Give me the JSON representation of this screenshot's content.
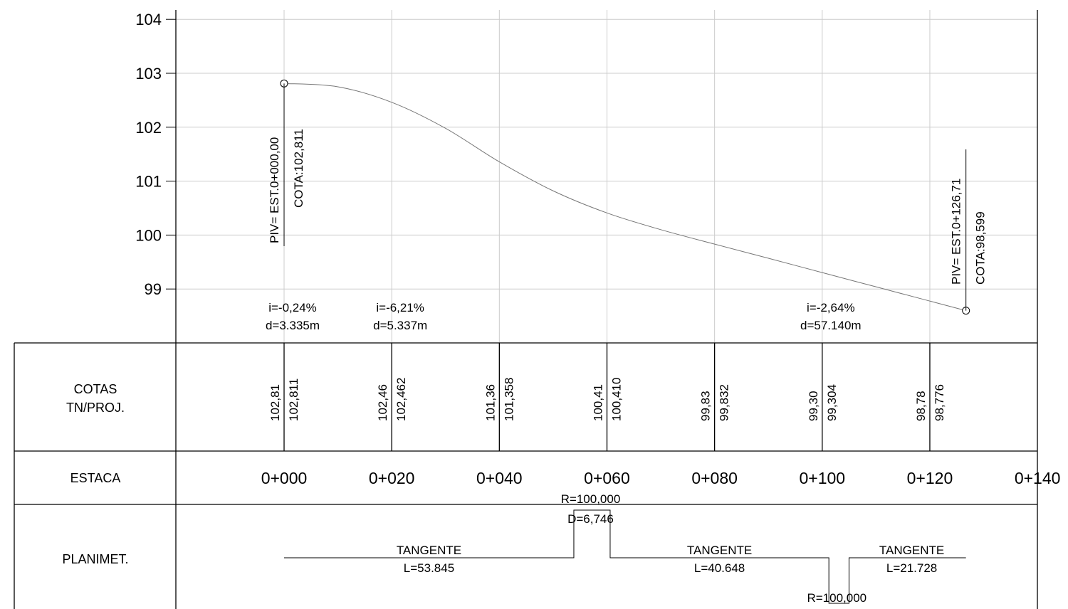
{
  "chart_data": {
    "type": "line",
    "title": "",
    "xlabel": "",
    "ylabel": "",
    "xlim": [
      -20,
      140
    ],
    "ylim": [
      98,
      104
    ],
    "y_ticks": [
      104,
      103,
      102,
      101,
      100,
      99
    ],
    "grid": true,
    "profile": {
      "x": [
        0,
        10,
        20,
        30,
        40,
        50,
        60,
        70,
        80,
        90,
        100,
        110,
        120,
        126.71
      ],
      "y": [
        102.811,
        102.75,
        102.462,
        101.98,
        101.358,
        100.82,
        100.41,
        100.1,
        99.832,
        99.57,
        99.304,
        99.04,
        98.776,
        98.599
      ]
    },
    "pivs": [
      {
        "x": 0,
        "y": 102.811,
        "station": "PIV= EST.0+000,00",
        "cota": "COTA:102,811"
      },
      {
        "x": 126.71,
        "y": 98.599,
        "station": "PIV= EST.0+126,71",
        "cota": "COTA:98,599"
      }
    ],
    "slopes": [
      {
        "x": 0,
        "i": "i=-0,24%",
        "d": "d=3.335m"
      },
      {
        "x": 20,
        "i": "i=-6,21%",
        "d": "d=5.337m"
      },
      {
        "x": 100,
        "i": "i=-2,64%",
        "d": "d=57.140m"
      }
    ]
  },
  "table": {
    "rows": {
      "cotas": [
        "COTAS",
        "TN/PROJ."
      ],
      "estaca": "ESTACA",
      "planimet": "PLANIMET."
    },
    "cotas": [
      {
        "x": 0,
        "tn": "102,81",
        "proj": "102,811"
      },
      {
        "x": 20,
        "tn": "102,46",
        "proj": "102,462"
      },
      {
        "x": 40,
        "tn": "101,36",
        "proj": "101,358"
      },
      {
        "x": 60,
        "tn": "100,41",
        "proj": "100,410"
      },
      {
        "x": 80,
        "tn": "99,83",
        "proj": "99,832"
      },
      {
        "x": 100,
        "tn": "99,30",
        "proj": "99,304"
      },
      {
        "x": 120,
        "tn": "98,78",
        "proj": "98,776"
      }
    ],
    "estacas": [
      {
        "x": 0,
        "label": "0+000"
      },
      {
        "x": 20,
        "label": "0+020"
      },
      {
        "x": 40,
        "label": "0+040"
      },
      {
        "x": 60,
        "label": "0+060"
      },
      {
        "x": 80,
        "label": "0+080"
      },
      {
        "x": 100,
        "label": "0+100"
      },
      {
        "x": 120,
        "label": "0+120"
      },
      {
        "x": 140,
        "label": "0+140"
      }
    ],
    "planimetria": {
      "tangents": [
        {
          "x0": 0,
          "x1": 53.845,
          "label": "TANGENTE",
          "length": "L=53.845"
        },
        {
          "x0": 60.591,
          "x1": 101.239,
          "label": "TANGENTE",
          "length": "L=40.648"
        },
        {
          "x0": 104.982,
          "x1": 126.71,
          "label": "TANGENTE",
          "length": "L=21.728"
        }
      ],
      "curves": [
        {
          "x0": 53.845,
          "x1": 60.591,
          "direction": "up",
          "radius": "R=100,000",
          "deflection": "D=6,746"
        },
        {
          "x0": 101.239,
          "x1": 104.982,
          "direction": "down",
          "radius": "R=100,000"
        }
      ]
    }
  }
}
